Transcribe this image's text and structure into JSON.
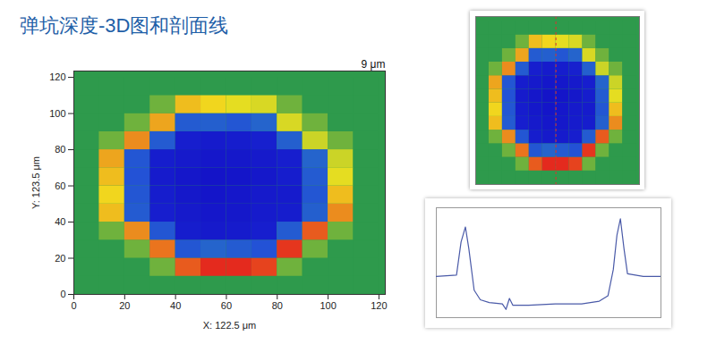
{
  "title": "弹坑深度-3D图和剖面线",
  "chart_data": [
    {
      "type": "heatmap",
      "x": [
        5,
        15,
        25,
        35,
        45,
        55,
        65,
        75,
        85,
        95,
        105,
        115
      ],
      "y": [
        5,
        15,
        25,
        35,
        45,
        55,
        65,
        75,
        85,
        95,
        105,
        115
      ],
      "z": [
        [
          0,
          0,
          0,
          0,
          0,
          0,
          0,
          0,
          0,
          0,
          0,
          0
        ],
        [
          0,
          0,
          0,
          0.5,
          2.6,
          3,
          3,
          2.8,
          0.5,
          0,
          0,
          0
        ],
        [
          0,
          0,
          0.5,
          2.4,
          -3.5,
          -3.2,
          -3.4,
          -3.6,
          2.9,
          0.5,
          0,
          0
        ],
        [
          0,
          0.5,
          2.2,
          -3.5,
          -6.4,
          -6.6,
          -6.5,
          -6.3,
          -3.4,
          2.6,
          0.5,
          0
        ],
        [
          0,
          1.8,
          -3.4,
          -6.3,
          -6.6,
          -6.8,
          -6.7,
          -6.5,
          -6.4,
          -3.3,
          2.2,
          0
        ],
        [
          0,
          1.6,
          -3.5,
          -6.4,
          -6.7,
          -6.9,
          -6.8,
          -6.6,
          -6.5,
          -3.5,
          1.8,
          0
        ],
        [
          0,
          1.8,
          -3.6,
          -6.5,
          -6.8,
          -7.0,
          -6.9,
          -6.7,
          -6.4,
          -3.4,
          1.4,
          0
        ],
        [
          0,
          2.0,
          -3.5,
          -6.4,
          -6.6,
          -6.8,
          -6.7,
          -6.6,
          -6.3,
          -3.2,
          1.2,
          0
        ],
        [
          0,
          0.5,
          2.2,
          -3.4,
          -6.3,
          -6.5,
          -6.4,
          -6.2,
          -3.3,
          1.2,
          0.5,
          0
        ],
        [
          0,
          0,
          0.5,
          2.0,
          -3.4,
          -3.3,
          -3.5,
          -3.2,
          1.3,
          0.5,
          0,
          0
        ],
        [
          0,
          0,
          0,
          0.5,
          1.8,
          1.6,
          1.4,
          1.3,
          0.5,
          0,
          0,
          0
        ],
        [
          0,
          0,
          0,
          0,
          0,
          0,
          0,
          0,
          0,
          0,
          0,
          0
        ]
      ],
      "color_stops": [
        -7,
        -4,
        -1.5,
        0,
        1.5,
        3
      ],
      "colors": [
        "#1414c8",
        "#2040e0",
        "#30b0a0",
        "#2e9a4c",
        "#f2e21e",
        "#e42a1e"
      ],
      "xlim": [
        0,
        122.5
      ],
      "ylim": [
        0,
        123.5
      ],
      "xticks": [
        0,
        20,
        40,
        60,
        80,
        100,
        120
      ],
      "yticks": [
        0,
        20,
        40,
        60,
        80,
        100,
        120
      ],
      "xlabel": "X: 122.5 μm",
      "ylabel": "Y: 123.5 μm",
      "z_label": "9 μm"
    },
    {
      "type": "heatmap",
      "x": [
        5,
        15,
        25,
        35,
        45,
        55,
        65,
        75,
        85,
        95,
        105,
        115
      ],
      "y": [
        5,
        15,
        25,
        35,
        45,
        55,
        65,
        75,
        85,
        95,
        105,
        115
      ],
      "z": [
        [
          0,
          0,
          0,
          0,
          0,
          0,
          0,
          0,
          0,
          0,
          0,
          0
        ],
        [
          0,
          0,
          0,
          0.5,
          2.6,
          3,
          3,
          2.8,
          0.5,
          0,
          0,
          0
        ],
        [
          0,
          0,
          0.5,
          2.4,
          -3.5,
          -3.2,
          -3.4,
          -3.6,
          2.9,
          0.5,
          0,
          0
        ],
        [
          0,
          0.5,
          2.2,
          -3.5,
          -6.4,
          -6.6,
          -6.5,
          -6.3,
          -3.4,
          2.6,
          0.5,
          0
        ],
        [
          0,
          1.8,
          -3.4,
          -6.3,
          -6.6,
          -6.8,
          -6.7,
          -6.5,
          -6.4,
          -3.3,
          2.2,
          0
        ],
        [
          0,
          1.6,
          -3.5,
          -6.4,
          -6.7,
          -6.9,
          -6.8,
          -6.6,
          -6.5,
          -3.5,
          1.8,
          0
        ],
        [
          0,
          1.8,
          -3.6,
          -6.5,
          -6.8,
          -7.0,
          -6.9,
          -6.7,
          -6.4,
          -3.4,
          1.4,
          0
        ],
        [
          0,
          2.0,
          -3.5,
          -6.4,
          -6.6,
          -6.8,
          -6.7,
          -6.6,
          -6.3,
          -3.2,
          1.2,
          0
        ],
        [
          0,
          0.5,
          2.2,
          -3.4,
          -6.3,
          -6.5,
          -6.4,
          -6.2,
          -3.3,
          1.2,
          0.5,
          0
        ],
        [
          0,
          0,
          0.5,
          2.0,
          -3.4,
          -3.3,
          -3.5,
          -3.2,
          1.3,
          0.5,
          0,
          0
        ],
        [
          0,
          0,
          0,
          0.5,
          1.8,
          1.6,
          1.4,
          1.3,
          0.5,
          0,
          0,
          0
        ],
        [
          0,
          0,
          0,
          0,
          0,
          0,
          0,
          0,
          0,
          0,
          0,
          0
        ]
      ],
      "color_stops": [
        -7,
        -4,
        -1.5,
        0,
        1.5,
        3
      ],
      "colors": [
        "#1414c8",
        "#2040e0",
        "#30b0a0",
        "#2e9a4c",
        "#f2e21e",
        "#e42a1e"
      ],
      "xlim": [
        0,
        122.5
      ],
      "ylim": [
        0,
        123.5
      ],
      "tick_labels": false,
      "profile_x": 60
    },
    {
      "type": "line",
      "x": [
        0,
        11.1,
        13.6,
        16.0,
        17.9,
        20.8,
        24.2,
        29.1,
        36.3,
        38.3,
        40.2,
        42.1,
        50.8,
        65.4,
        79.9,
        89.6,
        94.4,
        97.3,
        99.3,
        101.2,
        103.2,
        105.1,
        113.8,
        123.5
      ],
      "values": [
        0,
        0.1,
        2.5,
        3.6,
        2.0,
        -1.0,
        -1.7,
        -1.9,
        -2.0,
        -2.4,
        -1.6,
        -2.1,
        -2.1,
        -2.0,
        -2.0,
        -1.8,
        -1.4,
        0.5,
        3.0,
        4.2,
        2.0,
        0.2,
        0,
        0
      ],
      "xlim": [
        0,
        123.5
      ],
      "ylim": [
        -3,
        5
      ],
      "tick_labels": false,
      "color": "#4a5aa8"
    }
  ]
}
